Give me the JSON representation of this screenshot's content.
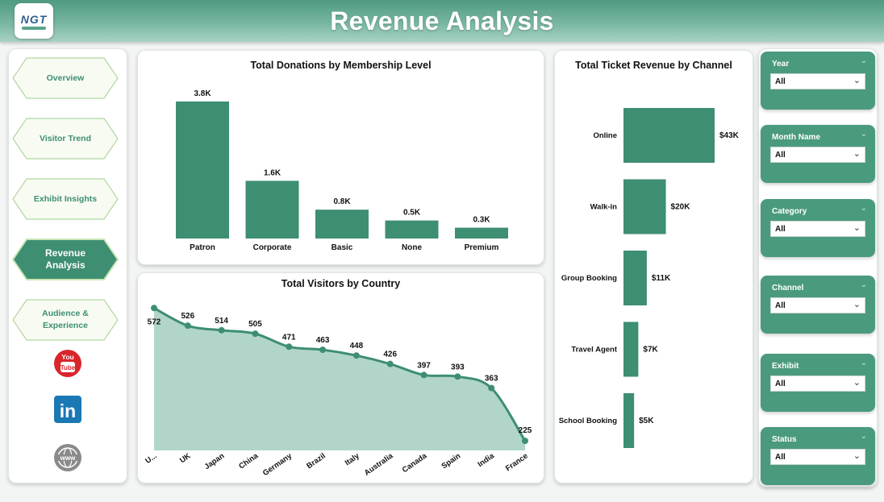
{
  "header": {
    "title": "Revenue Analysis",
    "logo_text": "NGT"
  },
  "nav": {
    "items": [
      {
        "id": "overview",
        "label": "Overview",
        "active": false
      },
      {
        "id": "visitor-trend",
        "label": "Visitor Trend",
        "active": false
      },
      {
        "id": "exhibit-insights",
        "label": "Exhibit Insights",
        "active": false
      },
      {
        "id": "revenue-analysis",
        "label": "Revenue Analysis",
        "active": true
      },
      {
        "id": "audience-experience",
        "label": "Audience & Experience",
        "active": false
      }
    ],
    "social": [
      {
        "name": "youtube-icon",
        "text": "You Tube"
      },
      {
        "name": "linkedin-icon",
        "text": "in"
      },
      {
        "name": "web-icon",
        "text": "www"
      }
    ]
  },
  "colors": {
    "accent": "#3e8e72",
    "accent_light": "#a9d2c3",
    "slicer_bg": "#4a9b7d"
  },
  "chart_data": [
    {
      "type": "bar",
      "title": "Total Donations by Membership Level",
      "categories": [
        "Patron",
        "Corporate",
        "Basic",
        "None",
        "Premium"
      ],
      "values": [
        3.8,
        1.6,
        0.8,
        0.5,
        0.3
      ],
      "data_labels": [
        "3.8K",
        "1.6K",
        "0.8K",
        "0.5K",
        "0.3K"
      ],
      "unit": "K",
      "ylim": [
        0,
        4
      ],
      "grid": false
    },
    {
      "type": "bar",
      "orientation": "horizontal",
      "title": "Total Ticket Revenue by Channel",
      "categories": [
        "Online",
        "Walk-in",
        "Group Booking",
        "Travel Agent",
        "School Booking"
      ],
      "values": [
        43,
        20,
        11,
        7,
        5
      ],
      "data_labels": [
        "$43K",
        "$20K",
        "$11K",
        "$7K",
        "$5K"
      ],
      "xlim": [
        0,
        60
      ],
      "grid": false
    },
    {
      "type": "area",
      "title": "Total Visitors by Country",
      "categories": [
        "U...",
        "UK",
        "Japan",
        "China",
        "Germany",
        "Brazil",
        "Italy",
        "Australia",
        "Canada",
        "Spain",
        "India",
        "France"
      ],
      "values": [
        572,
        526,
        514,
        505,
        471,
        463,
        448,
        426,
        397,
        393,
        363,
        225
      ],
      "ylim": [
        200,
        600
      ],
      "grid": false
    }
  ],
  "slicers": [
    {
      "label": "Year",
      "value": "All"
    },
    {
      "label": "Month Name",
      "value": "All"
    },
    {
      "label": "Category",
      "value": "All"
    },
    {
      "label": "Channel",
      "value": "All"
    },
    {
      "label": "Exhibit",
      "value": "All"
    },
    {
      "label": "Status",
      "value": "All"
    }
  ]
}
